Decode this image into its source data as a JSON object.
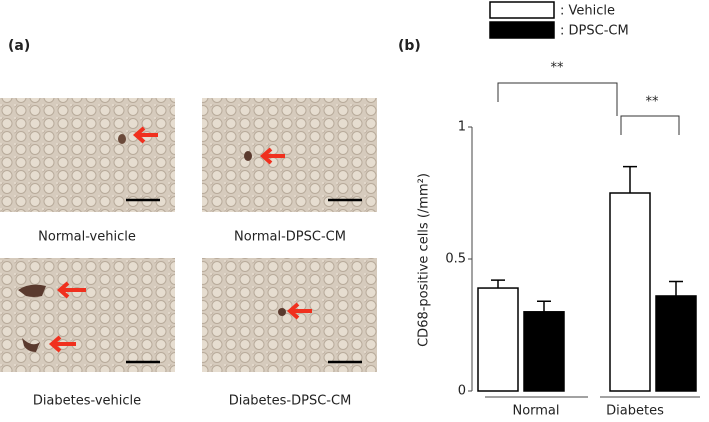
{
  "panel_a": {
    "label": "(a)",
    "captions": [
      "Normal-vehicle",
      "Normal-DPSC-CM",
      "Diabetes-vehicle",
      "Diabetes-DPSC-CM"
    ]
  },
  "chart_data": {
    "type": "bar",
    "panel_label": "(b)",
    "ylabel": "CD68-positive cells (/mm²)",
    "categories": [
      "Normal",
      "Diabetes"
    ],
    "series": [
      {
        "name": ": Vehicle",
        "color": "#ffffff",
        "values": [
          0.39,
          0.75
        ],
        "errors": [
          0.03,
          0.1
        ]
      },
      {
        "name": ": DPSC-CM",
        "color": "#000000",
        "values": [
          0.3,
          0.36
        ],
        "errors": [
          0.04,
          0.055
        ]
      }
    ],
    "ylim": [
      0,
      1
    ],
    "yticks": [
      0,
      0.5,
      1
    ],
    "annotations": [
      "**",
      "**"
    ]
  }
}
